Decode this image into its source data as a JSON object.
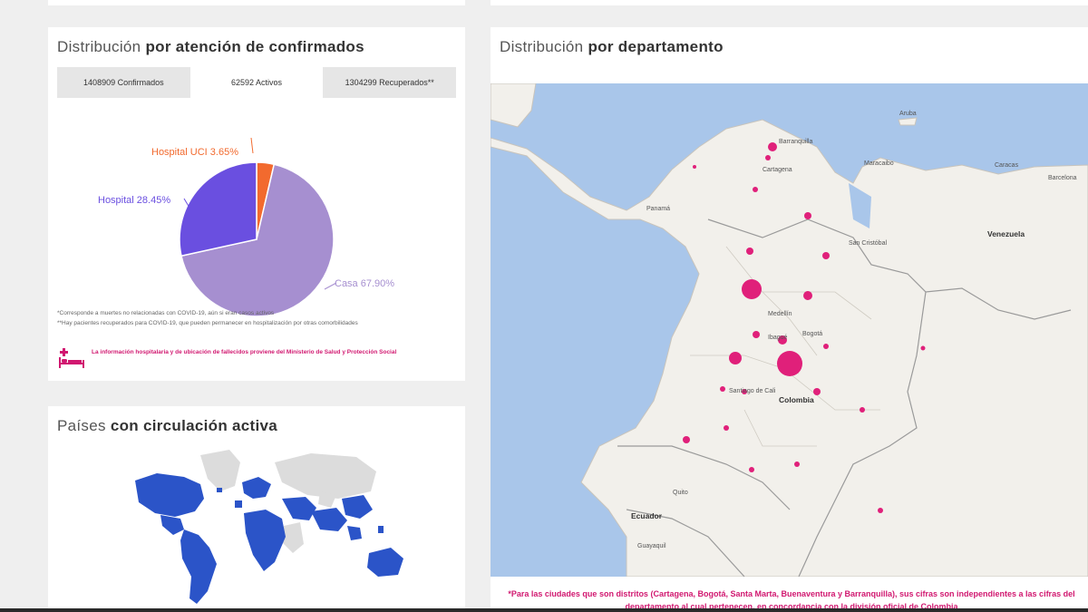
{
  "distribution": {
    "title_light": "Distribución",
    "title_bold": "por atención de confirmados",
    "tabs": [
      {
        "label": "1408909 Confirmados",
        "active": false
      },
      {
        "label": "62592 Activos",
        "active": true
      },
      {
        "label": "1304299 Recuperados**",
        "active": false
      }
    ],
    "pie": {
      "slices": [
        {
          "name": "Casa",
          "percent": 67.9,
          "label": "Casa 67.90%",
          "color": "#a68fd0"
        },
        {
          "name": "Hospital",
          "percent": 28.45,
          "label": "Hospital 28.45%",
          "color": "#6a4fe0"
        },
        {
          "name": "Hospital UCI",
          "percent": 3.65,
          "label": "Hospital UCI 3.65%",
          "color": "#f26a2e"
        }
      ]
    },
    "footnotes": [
      "*Corresponde a muertes no relacionadas con COVID-19, aún si eran casos activos",
      "**Hay pacientes recuperados para COVID-19, que pueden permanecer en hospitalización por otras comorbilidades"
    ],
    "source_note": "La información hospitalaria y de ubicación de fallecidos proviene del Ministerio de Salud y Protección Social"
  },
  "countries": {
    "title_light": "Países",
    "title_bold": "con circulación activa",
    "active_color": "#2b54c8",
    "inactive_color": "#dcdcdc"
  },
  "department": {
    "title_light": "Distribución",
    "title_bold": "por departamento",
    "bubble_color": "#e0207a",
    "map_labels": {
      "barranquilla": "Barranquilla",
      "cartagena": "Cartagena",
      "maracaibo": "Maracaibo",
      "caracas": "Caracas",
      "barcelona": "Barcelona",
      "panama": "Panamá",
      "venezuela": "Venezuela",
      "san_cristobal": "San Cristóbal",
      "medellin": "Medellín",
      "bogota": "Bogotá",
      "ibague": "Ibagué",
      "santiago_de_cali": "Santiago de Cali",
      "colombia": "Colombia",
      "quito": "Quito",
      "ecuador": "Ecuador",
      "guayaquil": "Guayaquil",
      "aruba": "Aruba"
    },
    "note": "*Para las ciudades que son distritos (Cartagena, Bogotá, Santa Marta, Buenaventura y Barranquilla), sus cifras son independientes a las cifras del departamento al cual pertenecen, en concordancia con la división oficial de Colombia"
  }
}
